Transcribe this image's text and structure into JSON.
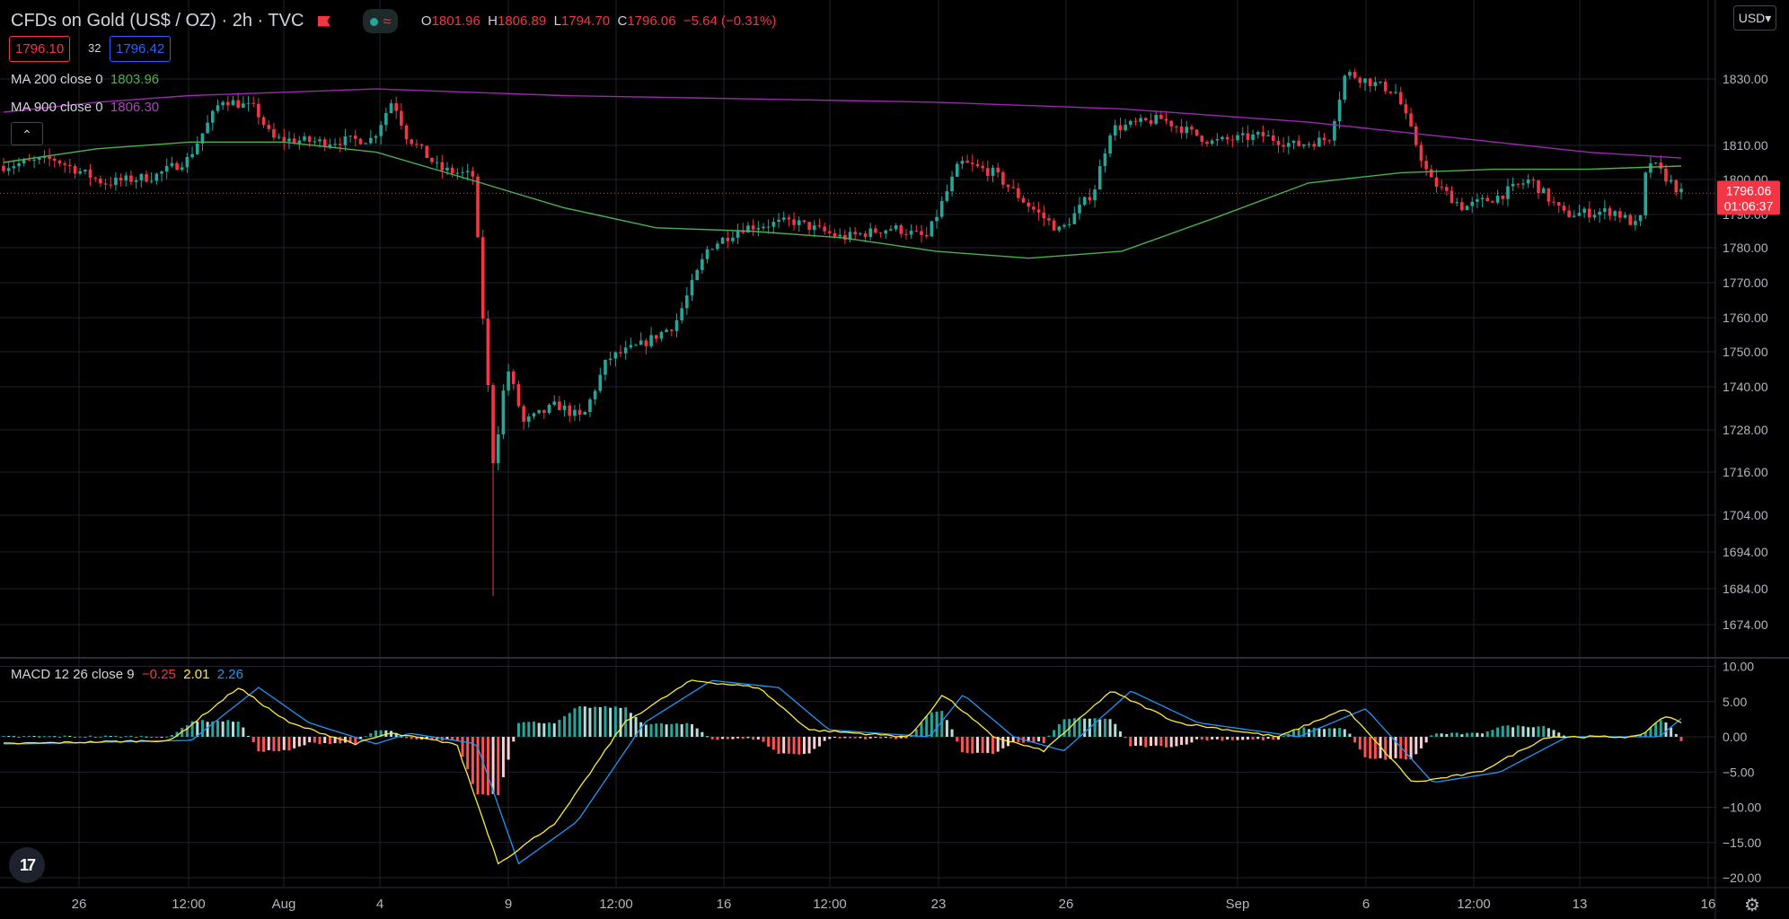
{
  "header": {
    "symbol": "CFDs on Gold (US$ / OZ)",
    "interval": "2h",
    "source": "TVC",
    "sep1": "·",
    "sep2": "·",
    "ohlc": {
      "o_label": "O",
      "o": "1801.96",
      "h_label": "H",
      "h": "1806.89",
      "l_label": "L",
      "l": "1794.70",
      "c_label": "C",
      "c": "1796.06",
      "change": "−5.64 (−0.31%)"
    },
    "bid": "1796.10",
    "spread": "32",
    "ask": "1796.42",
    "currency": "USD",
    "collapse_icon": "chevron-up-icon"
  },
  "indicators": {
    "ma200": {
      "label": "MA 200 close 0",
      "value": "1803.96",
      "color": "#4caf50"
    },
    "ma900": {
      "label": "MA 900 close 0",
      "value": "1806.30",
      "color": "#9c27b0"
    },
    "macd": {
      "label": "MACD 12 26 close 9",
      "hist": "−0.25",
      "macd": "2.01",
      "signal": "2.26",
      "hist_color": "#f23645",
      "macd_color": "#ffeb3b",
      "signal_color": "#2196f3"
    }
  },
  "colors": {
    "up": "#26a69a",
    "down": "#f23645",
    "grid": "#1e222d",
    "axis_text": "#b2b5be"
  },
  "chart_data": [
    {
      "type": "candlestick",
      "title": "CFDs on Gold (US$ / OZ)",
      "y_ticks": [
        1674,
        1684,
        1694,
        1704,
        1716,
        1728,
        1740,
        1750,
        1760,
        1770,
        1780,
        1790,
        1800,
        1810,
        1830
      ],
      "y_tick_labels": [
        "1674.00",
        "1684.00",
        "1694.00",
        "1704.00",
        "1716.00",
        "1728.00",
        "1740.00",
        "1750.00",
        "1760.00",
        "1770.00",
        "1780.00",
        "1790.00",
        "1800.00",
        "1810.00",
        "1830.00"
      ],
      "last_price": "1796.06",
      "countdown": "01:06:37",
      "x_labels": [
        "26",
        "12:00",
        "Aug",
        "4",
        "9",
        "12:00",
        "16",
        "12:00",
        "23",
        "26",
        "Sep",
        "6",
        "12:00",
        "13",
        "16"
      ],
      "price_path": [
        {
          "t": 0,
          "p": 1804
        },
        {
          "t": 0.03,
          "p": 1806
        },
        {
          "t": 0.06,
          "p": 1799
        },
        {
          "t": 0.09,
          "p": 1801
        },
        {
          "t": 0.11,
          "p": 1806
        },
        {
          "t": 0.13,
          "p": 1824
        },
        {
          "t": 0.15,
          "p": 1821
        },
        {
          "t": 0.16,
          "p": 1812
        },
        {
          "t": 0.19,
          "p": 1811
        },
        {
          "t": 0.22,
          "p": 1812
        },
        {
          "t": 0.232,
          "p": 1824
        },
        {
          "t": 0.24,
          "p": 1813
        },
        {
          "t": 0.26,
          "p": 1803
        },
        {
          "t": 0.28,
          "p": 1801
        },
        {
          "t": 0.285,
          "p": 1765
        },
        {
          "t": 0.292,
          "p": 1718
        },
        {
          "t": 0.3,
          "p": 1746
        },
        {
          "t": 0.31,
          "p": 1730
        },
        {
          "t": 0.33,
          "p": 1735
        },
        {
          "t": 0.345,
          "p": 1731
        },
        {
          "t": 0.36,
          "p": 1748
        },
        {
          "t": 0.38,
          "p": 1752
        },
        {
          "t": 0.4,
          "p": 1758
        },
        {
          "t": 0.42,
          "p": 1780
        },
        {
          "t": 0.44,
          "p": 1786
        },
        {
          "t": 0.47,
          "p": 1788
        },
        {
          "t": 0.5,
          "p": 1783
        },
        {
          "t": 0.53,
          "p": 1786
        },
        {
          "t": 0.55,
          "p": 1783
        },
        {
          "t": 0.57,
          "p": 1805
        },
        {
          "t": 0.59,
          "p": 1802
        },
        {
          "t": 0.61,
          "p": 1793
        },
        {
          "t": 0.63,
          "p": 1785
        },
        {
          "t": 0.65,
          "p": 1797
        },
        {
          "t": 0.66,
          "p": 1815
        },
        {
          "t": 0.69,
          "p": 1818
        },
        {
          "t": 0.72,
          "p": 1811
        },
        {
          "t": 0.75,
          "p": 1813
        },
        {
          "t": 0.77,
          "p": 1810
        },
        {
          "t": 0.79,
          "p": 1812
        },
        {
          "t": 0.8,
          "p": 1832
        },
        {
          "t": 0.83,
          "p": 1826
        },
        {
          "t": 0.85,
          "p": 1800
        },
        {
          "t": 0.87,
          "p": 1792
        },
        {
          "t": 0.89,
          "p": 1795
        },
        {
          "t": 0.91,
          "p": 1800
        },
        {
          "t": 0.93,
          "p": 1790
        },
        {
          "t": 0.96,
          "p": 1791
        },
        {
          "t": 0.975,
          "p": 1786
        },
        {
          "t": 0.98,
          "p": 1806
        },
        {
          "t": 1.0,
          "p": 1796.06
        }
      ],
      "low_spike": {
        "t": 0.292,
        "p": 1682
      }
    },
    {
      "type": "line",
      "series": [
        {
          "name": "MA 200 close 0",
          "values": [
            1805,
            1809,
            1811,
            1811,
            1808,
            1800,
            1792,
            1786,
            1785,
            1783,
            1779,
            1777,
            1779,
            1789,
            1799,
            1802,
            1803,
            1803,
            1803.96
          ]
        },
        {
          "name": "MA 900 close 0",
          "values": [
            1820,
            1823,
            1825,
            1826,
            1827,
            1826,
            1825,
            1824.5,
            1824,
            1823.5,
            1823,
            1822,
            1821,
            1819,
            1817,
            1814,
            1811,
            1808,
            1806.3
          ]
        }
      ]
    },
    {
      "type": "bar",
      "title": "MACD 12 26 close 9",
      "y_ticks": [
        10,
        5,
        0,
        -5,
        -10,
        -15,
        -20
      ],
      "y_tick_labels": [
        "10.00",
        "5.00",
        "0.00",
        "−5.00",
        "−10.00",
        "−15.00",
        "−20.00"
      ],
      "macd_path": [
        {
          "t": 0,
          "v": -1
        },
        {
          "t": 0.1,
          "v": -0.5
        },
        {
          "t": 0.14,
          "v": 7
        },
        {
          "t": 0.17,
          "v": 2
        },
        {
          "t": 0.21,
          "v": -1
        },
        {
          "t": 0.23,
          "v": 0.5
        },
        {
          "t": 0.27,
          "v": -1
        },
        {
          "t": 0.295,
          "v": -18
        },
        {
          "t": 0.33,
          "v": -12
        },
        {
          "t": 0.37,
          "v": 2
        },
        {
          "t": 0.41,
          "v": 8
        },
        {
          "t": 0.45,
          "v": 7
        },
        {
          "t": 0.48,
          "v": 1
        },
        {
          "t": 0.54,
          "v": 0
        },
        {
          "t": 0.56,
          "v": 6
        },
        {
          "t": 0.59,
          "v": 0
        },
        {
          "t": 0.62,
          "v": -2
        },
        {
          "t": 0.66,
          "v": 6.5
        },
        {
          "t": 0.7,
          "v": 2
        },
        {
          "t": 0.76,
          "v": 0
        },
        {
          "t": 0.8,
          "v": 4
        },
        {
          "t": 0.84,
          "v": -6.5
        },
        {
          "t": 0.88,
          "v": -5
        },
        {
          "t": 0.92,
          "v": 0
        },
        {
          "t": 0.975,
          "v": 0
        },
        {
          "t": 0.99,
          "v": 3
        },
        {
          "t": 1.0,
          "v": 2.01
        }
      ],
      "signal_lag": 0.012
    }
  ]
}
